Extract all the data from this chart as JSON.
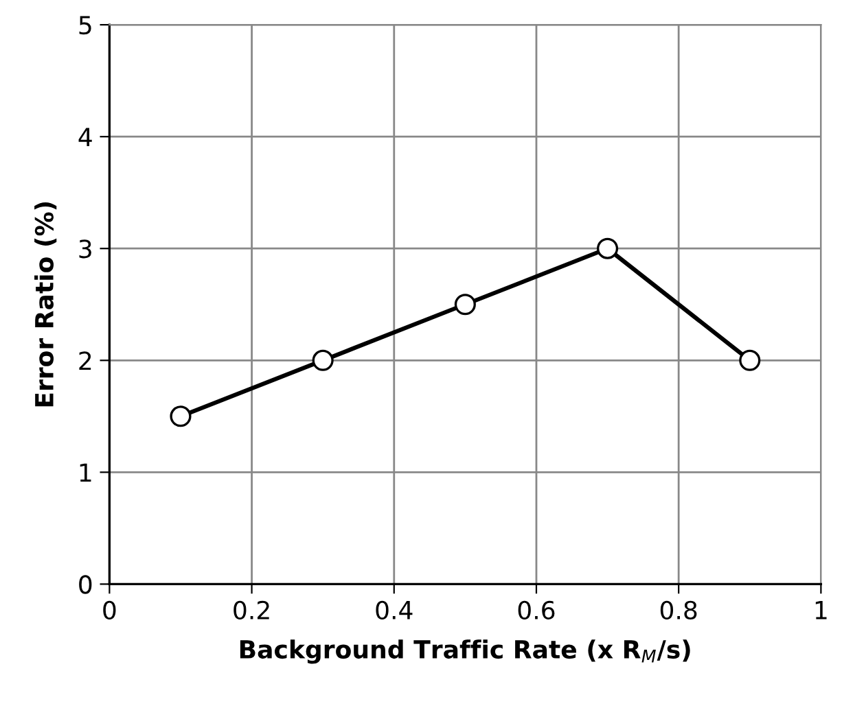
{
  "chart_data": {
    "type": "line",
    "xlabel": "Background Traffic Rate (x R$_{M}$/s)",
    "ylabel": "Error Ratio (%)",
    "x": [
      0.1,
      0.3,
      0.5,
      0.7,
      0.9
    ],
    "series": [
      {
        "color": "#000000",
        "values": [
          1.5,
          2,
          2.5,
          3,
          2
        ]
      }
    ],
    "xlim": [
      0,
      1
    ],
    "xticks": [
      0,
      0.2,
      0.4,
      0.6,
      0.8,
      1
    ],
    "ylim": [
      0,
      5
    ],
    "yticks": [
      0,
      1,
      2,
      3,
      4,
      5
    ],
    "grid": true,
    "marker": "circle",
    "line_style": "solid"
  }
}
